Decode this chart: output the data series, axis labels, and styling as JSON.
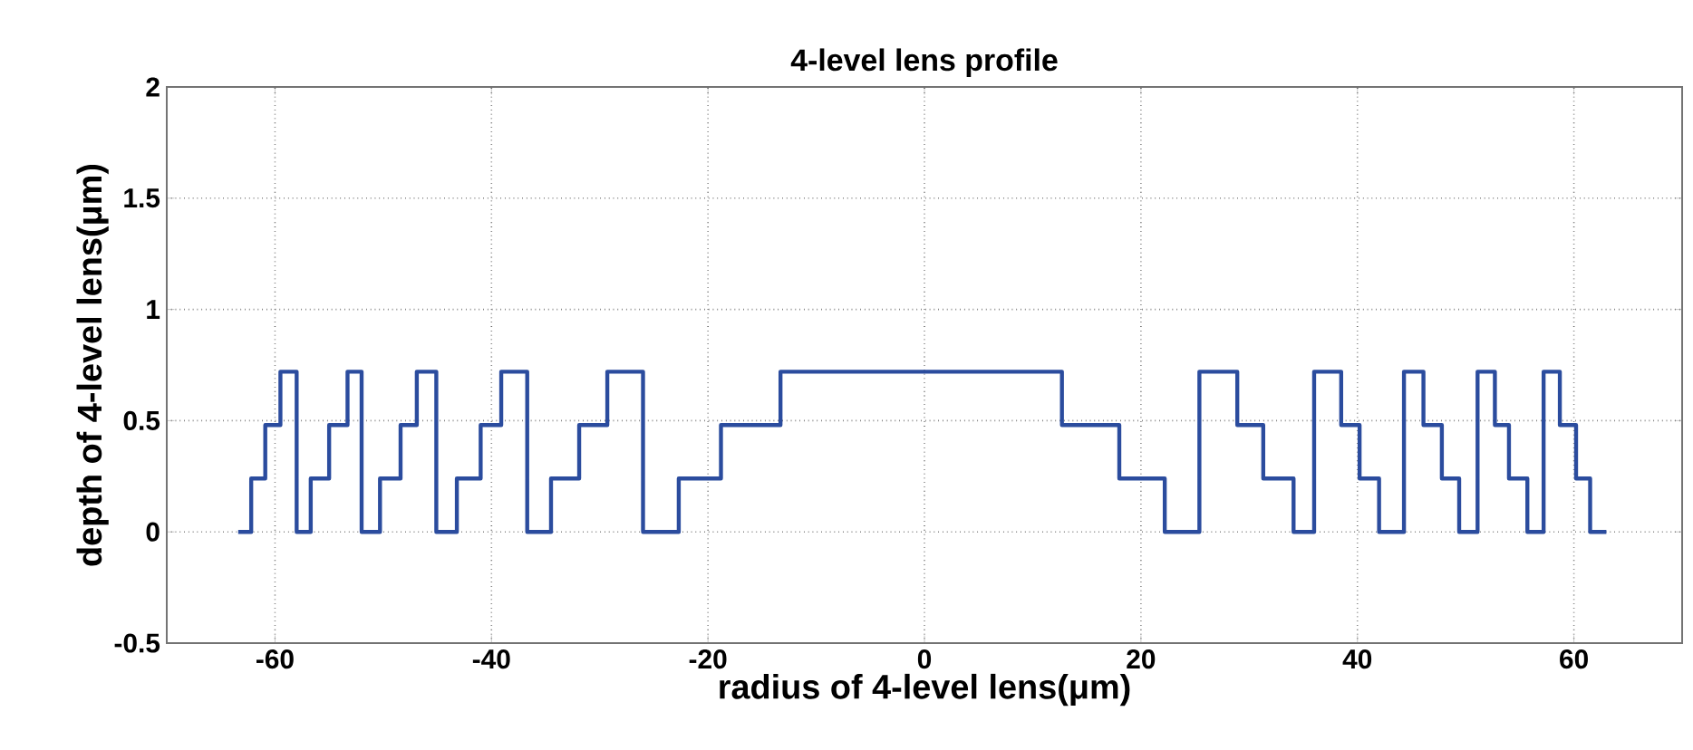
{
  "chart_data": {
    "type": "step",
    "title": "4-level lens profile",
    "xlabel": "radius of 4-level lens(μm)",
    "ylabel": "depth of 4-level lens(μm)",
    "xlim": [
      -70,
      70
    ],
    "xticks": [
      -60,
      -40,
      -20,
      0,
      20,
      40,
      60
    ],
    "ylim": [
      -0.5,
      2
    ],
    "yticks": [
      -0.5,
      0,
      0.5,
      1,
      1.5,
      2
    ],
    "grid": true,
    "line_style": "solid",
    "series": [
      {
        "color": "#2b4c9e",
        "x": [
          -63.4,
          -62.2,
          -60.9,
          -59.5,
          -58.0,
          -56.7,
          -55.0,
          -53.3,
          -52.0,
          -50.3,
          -48.4,
          -46.9,
          -45.1,
          -43.2,
          -41.0,
          -39.1,
          -36.7,
          -34.5,
          -31.9,
          -29.3,
          -26.0,
          -22.7,
          -18.8,
          -13.3,
          12.7,
          18.0,
          22.2,
          25.4,
          28.9,
          31.3,
          34.1,
          36.0,
          38.5,
          40.2,
          42.0,
          44.3,
          46.1,
          47.8,
          49.4,
          51.1,
          52.7,
          54.0,
          55.7,
          57.2,
          58.7,
          60.2,
          61.5,
          63.0
        ],
        "values": [
          0,
          0.24,
          0.48,
          0.72,
          0,
          0.24,
          0.48,
          0.72,
          0,
          0.24,
          0.48,
          0.72,
          0,
          0.24,
          0.48,
          0.72,
          0,
          0.24,
          0.48,
          0.72,
          0,
          0.24,
          0.48,
          0.72,
          0.48,
          0.24,
          0,
          0.72,
          0.48,
          0.24,
          0,
          0.72,
          0.48,
          0.24,
          0,
          0.72,
          0.48,
          0.24,
          0,
          0.72,
          0.48,
          0.24,
          0,
          0.72,
          0.48,
          0.24,
          0,
          0
        ]
      }
    ]
  }
}
